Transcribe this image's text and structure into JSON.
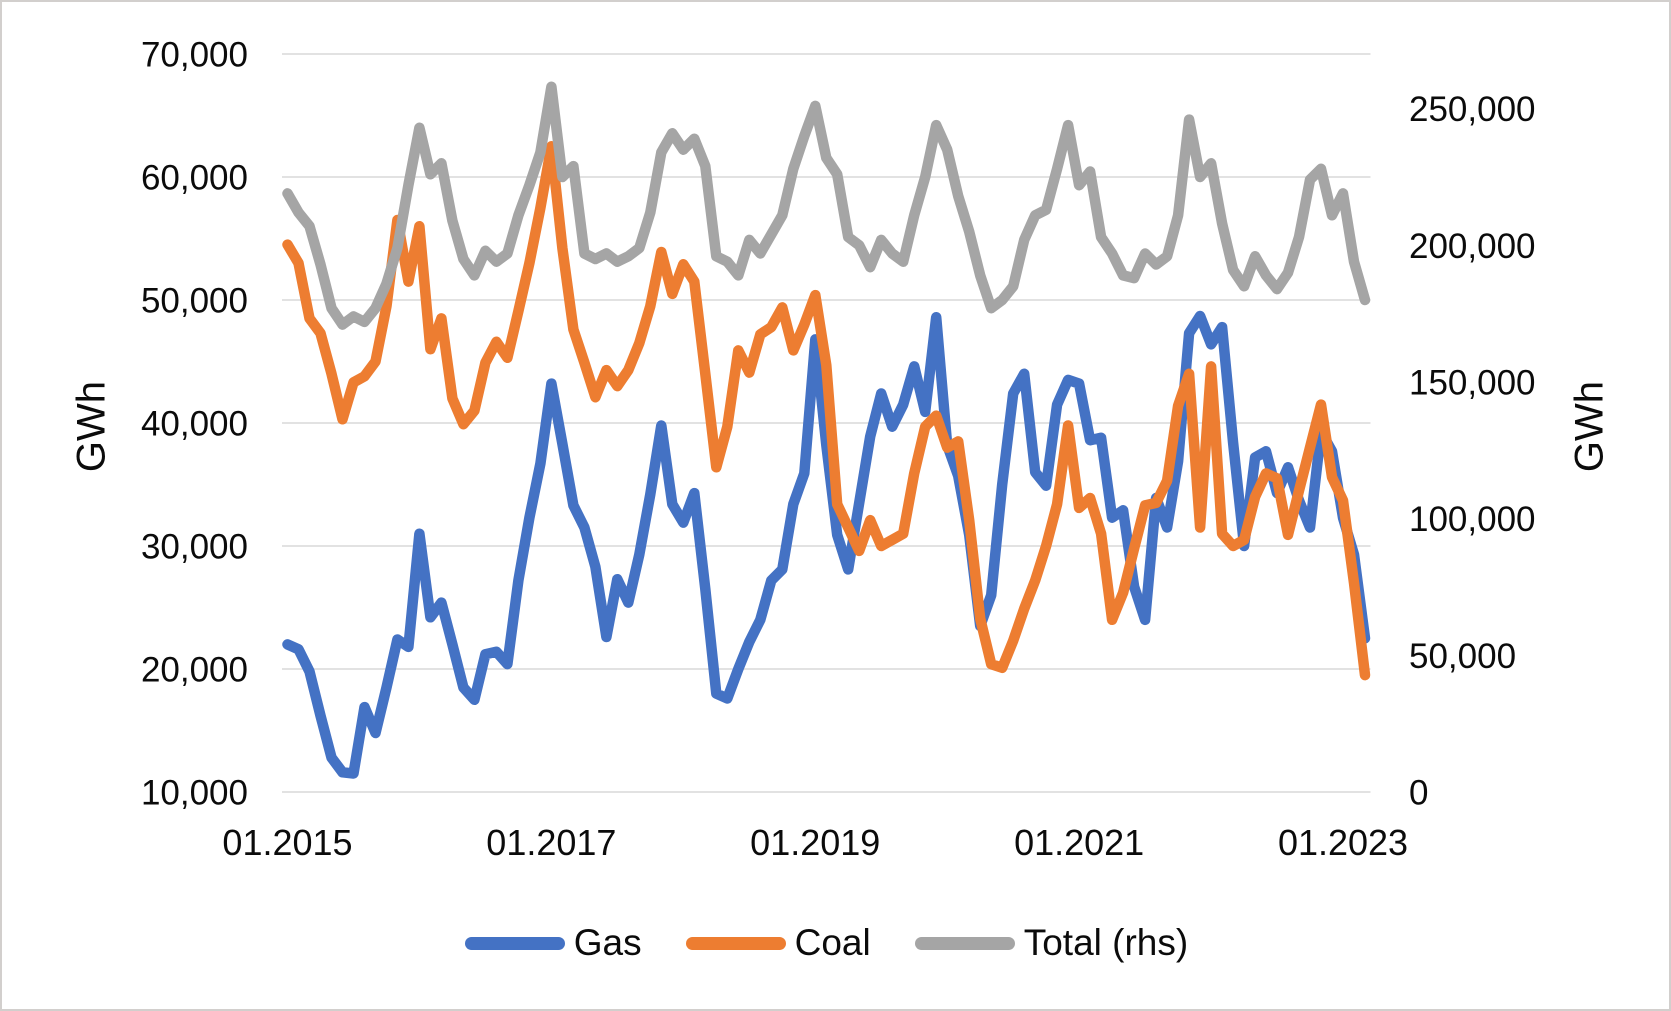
{
  "chart_data": {
    "type": "line",
    "title": "",
    "x_interval": "monthly",
    "x_start": "01.2015",
    "x_end": "03.2023",
    "x_tick_labels": [
      "01.2015",
      "01.2017",
      "01.2019",
      "01.2021",
      "01.2023"
    ],
    "x_tick_month_index": [
      0,
      24,
      48,
      72,
      96
    ],
    "grid": true,
    "legend_position": "bottom",
    "left_axis": {
      "title": "GWh",
      "min": 10000,
      "max": 70000,
      "ticks": [
        10000,
        20000,
        30000,
        40000,
        50000,
        60000,
        70000
      ]
    },
    "right_axis": {
      "title": "GWh",
      "min": 0,
      "max": 270000,
      "ticks": [
        0,
        50000,
        100000,
        150000,
        200000,
        250000
      ]
    },
    "series": [
      {
        "name": "Gas",
        "color": "#4472C4",
        "axis": "left",
        "values": [
          22000,
          21600,
          19800,
          16200,
          12800,
          11600,
          11500,
          16900,
          14800,
          18500,
          22400,
          21800,
          31000,
          24200,
          25400,
          22000,
          18500,
          17500,
          21200,
          21400,
          20400,
          27200,
          32300,
          36700,
          43200,
          38300,
          33300,
          31500,
          28300,
          22600,
          27300,
          25400,
          29300,
          34200,
          39800,
          33400,
          31900,
          34300,
          26500,
          18000,
          17600,
          20000,
          22200,
          24000,
          27200,
          28100,
          33400,
          35900,
          46800,
          38200,
          30900,
          28100,
          33500,
          38900,
          42400,
          39700,
          41500,
          44600,
          40900,
          48600,
          38200,
          35700,
          30900,
          23500,
          26000,
          35000,
          42400,
          44000,
          36000,
          34900,
          41500,
          43500,
          43200,
          38600,
          38800,
          32300,
          32900,
          26700,
          24000,
          33900,
          31500,
          36900,
          47300,
          48700,
          46400,
          47800,
          38400,
          30000,
          37200,
          37700,
          34300,
          36400,
          33700,
          31500,
          39300,
          37700,
          32300,
          29300,
          22500
        ]
      },
      {
        "name": "Coal",
        "color": "#ED7D31",
        "axis": "left",
        "values": [
          54500,
          53000,
          48500,
          47300,
          44000,
          40300,
          43300,
          43800,
          45000,
          49500,
          56500,
          51500,
          56000,
          46000,
          48500,
          42000,
          39900,
          41000,
          44900,
          46600,
          45300,
          49100,
          53000,
          57500,
          62500,
          54200,
          47600,
          44900,
          42100,
          44300,
          43000,
          44300,
          46500,
          49500,
          53900,
          50500,
          52900,
          51500,
          44000,
          36400,
          39700,
          45900,
          44100,
          47200,
          47800,
          49400,
          45900,
          48000,
          50400,
          44700,
          33400,
          31500,
          29600,
          32100,
          30000,
          30500,
          31000,
          35900,
          39700,
          40600,
          38000,
          38500,
          32100,
          24100,
          20400,
          20100,
          22300,
          24900,
          27200,
          30000,
          33400,
          39800,
          33100,
          33900,
          31000,
          24000,
          26200,
          29800,
          33300,
          33500,
          35300,
          41400,
          44000,
          31500,
          44600,
          31000,
          30000,
          30500,
          34000,
          35900,
          35500,
          30900,
          34500,
          38000,
          41500,
          35600,
          33700,
          27000,
          19500
        ]
      },
      {
        "name": "Total (rhs)",
        "color": "#A5A5A5",
        "axis": "right",
        "values": [
          219000,
          212000,
          207000,
          193000,
          177000,
          171000,
          174000,
          172000,
          177000,
          186000,
          199000,
          222000,
          243000,
          226000,
          230000,
          209000,
          195000,
          189000,
          198000,
          194000,
          197000,
          211000,
          222000,
          234000,
          258000,
          225000,
          229000,
          197000,
          195000,
          197000,
          194000,
          196000,
          199000,
          212000,
          234000,
          241000,
          235000,
          239000,
          229000,
          196000,
          194000,
          189000,
          202000,
          197000,
          204000,
          211000,
          228000,
          240000,
          251000,
          232000,
          226000,
          203000,
          200000,
          192000,
          202000,
          197000,
          194000,
          211000,
          225000,
          244000,
          235000,
          218000,
          205000,
          189000,
          177000,
          180000,
          185000,
          202000,
          211000,
          213000,
          228000,
          244000,
          222000,
          227000,
          203000,
          197000,
          189000,
          188000,
          197000,
          193000,
          196000,
          211000,
          246000,
          225000,
          230000,
          208000,
          191000,
          185000,
          196000,
          189000,
          184000,
          190000,
          203000,
          224000,
          228000,
          211000,
          219000,
          194000,
          180000
        ]
      }
    ],
    "style": {
      "gridline_color": "#D9D9D9",
      "line_width": 10.5,
      "background": "#FFFFFF"
    }
  }
}
